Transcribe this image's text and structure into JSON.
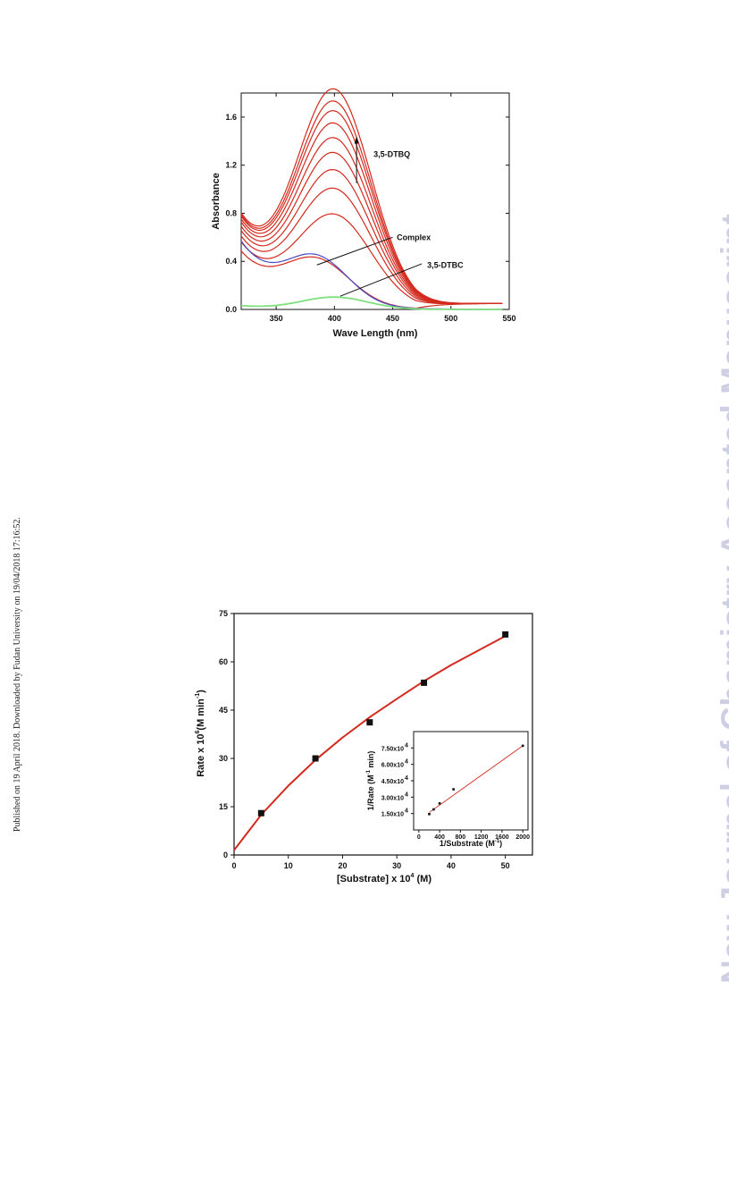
{
  "side_note": "Published on 19 April 2018. Downloaded by Fudan University on 19/04/2018 17:16:52.",
  "watermark": "New Journal of Chemistry Accepted Manuscript",
  "colors": {
    "red": "#d42a1e",
    "blue": "#4a4ac8",
    "green": "#7ee07e",
    "black": "#111111"
  },
  "chart_data": [
    {
      "type": "line",
      "xlabel": "Wave Length (nm)",
      "ylabel": "Absorbance",
      "xlim": [
        320,
        550
      ],
      "ylim": [
        0.0,
        1.8
      ],
      "xticks": [
        350,
        400,
        450,
        500,
        550
      ],
      "yticks": [
        0.0,
        0.4,
        0.8,
        1.2,
        1.6
      ],
      "ytick_labels": [
        "0.0",
        "0.4",
        "0.8",
        "1.2",
        "1.6"
      ],
      "annotations": [
        {
          "text": "3,5-DTBQ",
          "x": 432,
          "y": 1.29
        },
        {
          "text": "Complex",
          "x": 452,
          "y": 0.6
        },
        {
          "text": "3,5-DTBC",
          "x": 478,
          "y": 0.37
        }
      ],
      "series": [
        {
          "kind": "red",
          "base": 0.46,
          "peak": 0.36,
          "center": 385,
          "width": 40
        },
        {
          "kind": "red",
          "base": 0.53,
          "peak": 0.74,
          "center": 400,
          "width": 45
        },
        {
          "kind": "red",
          "base": 0.57,
          "peak": 0.95,
          "center": 400,
          "width": 45
        },
        {
          "kind": "red",
          "base": 0.61,
          "peak": 1.1,
          "center": 400,
          "width": 45
        },
        {
          "kind": "red",
          "base": 0.64,
          "peak": 1.24,
          "center": 400,
          "width": 45
        },
        {
          "kind": "red",
          "base": 0.67,
          "peak": 1.36,
          "center": 400,
          "width": 45
        },
        {
          "kind": "red",
          "base": 0.69,
          "peak": 1.48,
          "center": 400,
          "width": 45
        },
        {
          "kind": "red",
          "base": 0.71,
          "peak": 1.58,
          "center": 400,
          "width": 45
        },
        {
          "kind": "red",
          "base": 0.72,
          "peak": 1.66,
          "center": 400,
          "width": 45
        },
        {
          "kind": "red",
          "base": 0.73,
          "peak": 1.76,
          "center": 400,
          "width": 45
        },
        {
          "kind": "blue",
          "base": 0.55,
          "peak": 0.37,
          "center": 385,
          "width": 38
        },
        {
          "kind": "green",
          "base": 0.03,
          "peak": 0.1,
          "center": 400,
          "width": 40
        }
      ]
    },
    {
      "type": "scatter",
      "xlabel": "[Substrate] x 10",
      "xlabel_sup": "4",
      "xlabel_end": " (M)",
      "ylabel": "Rate x 10",
      "ylabel_sup": "6",
      "ylabel_end": "(M min",
      "ylabel_sup2": "-1",
      "ylabel_close": ")",
      "xlim": [
        0,
        55
      ],
      "ylim": [
        0,
        75
      ],
      "xticks": [
        0,
        10,
        20,
        30,
        40,
        50
      ],
      "yticks": [
        0,
        15,
        30,
        45,
        60,
        75
      ],
      "points": [
        {
          "x": 5,
          "y": 13.0
        },
        {
          "x": 15,
          "y": 30.0
        },
        {
          "x": 25,
          "y": 41.2
        },
        {
          "x": 35,
          "y": 53.5
        },
        {
          "x": 50,
          "y": 68.5
        }
      ],
      "fit_curve": [
        [
          0,
          1.5
        ],
        [
          5,
          12.5
        ],
        [
          10,
          21.5
        ],
        [
          15,
          29.5
        ],
        [
          20,
          36.5
        ],
        [
          25,
          42.8
        ],
        [
          30,
          48.5
        ],
        [
          35,
          54.0
        ],
        [
          40,
          59.0
        ],
        [
          45,
          63.5
        ],
        [
          50,
          68.0
        ]
      ],
      "inset": {
        "type": "scatter",
        "xlabel": "1/Substrate (M",
        "xlabel_sup": "-1",
        "xlabel_end": ")",
        "ylabel": "1/Rate (M",
        "ylabel_sup": "-1",
        "ylabel_end": " min)",
        "xlim": [
          -100,
          2100
        ],
        "ylim": [
          0,
          9.0
        ],
        "xticks": [
          0,
          400,
          800,
          1200,
          1600,
          2000
        ],
        "yticks": [
          1.5,
          3.0,
          4.5,
          6.0,
          7.5
        ],
        "ytick_labels": [
          "1.50x10",
          "3.00x10",
          "4.50x10",
          "6.00x10",
          "7.50x10"
        ],
        "ytick_sup": "4",
        "points": [
          {
            "x": 200,
            "y": 1.45
          },
          {
            "x": 285,
            "y": 1.88
          },
          {
            "x": 400,
            "y": 2.43
          },
          {
            "x": 667,
            "y": 3.72
          },
          {
            "x": 2000,
            "y": 7.7
          }
        ],
        "fit_line": [
          [
            200,
            1.6
          ],
          [
            2000,
            7.7
          ]
        ]
      }
    }
  ]
}
